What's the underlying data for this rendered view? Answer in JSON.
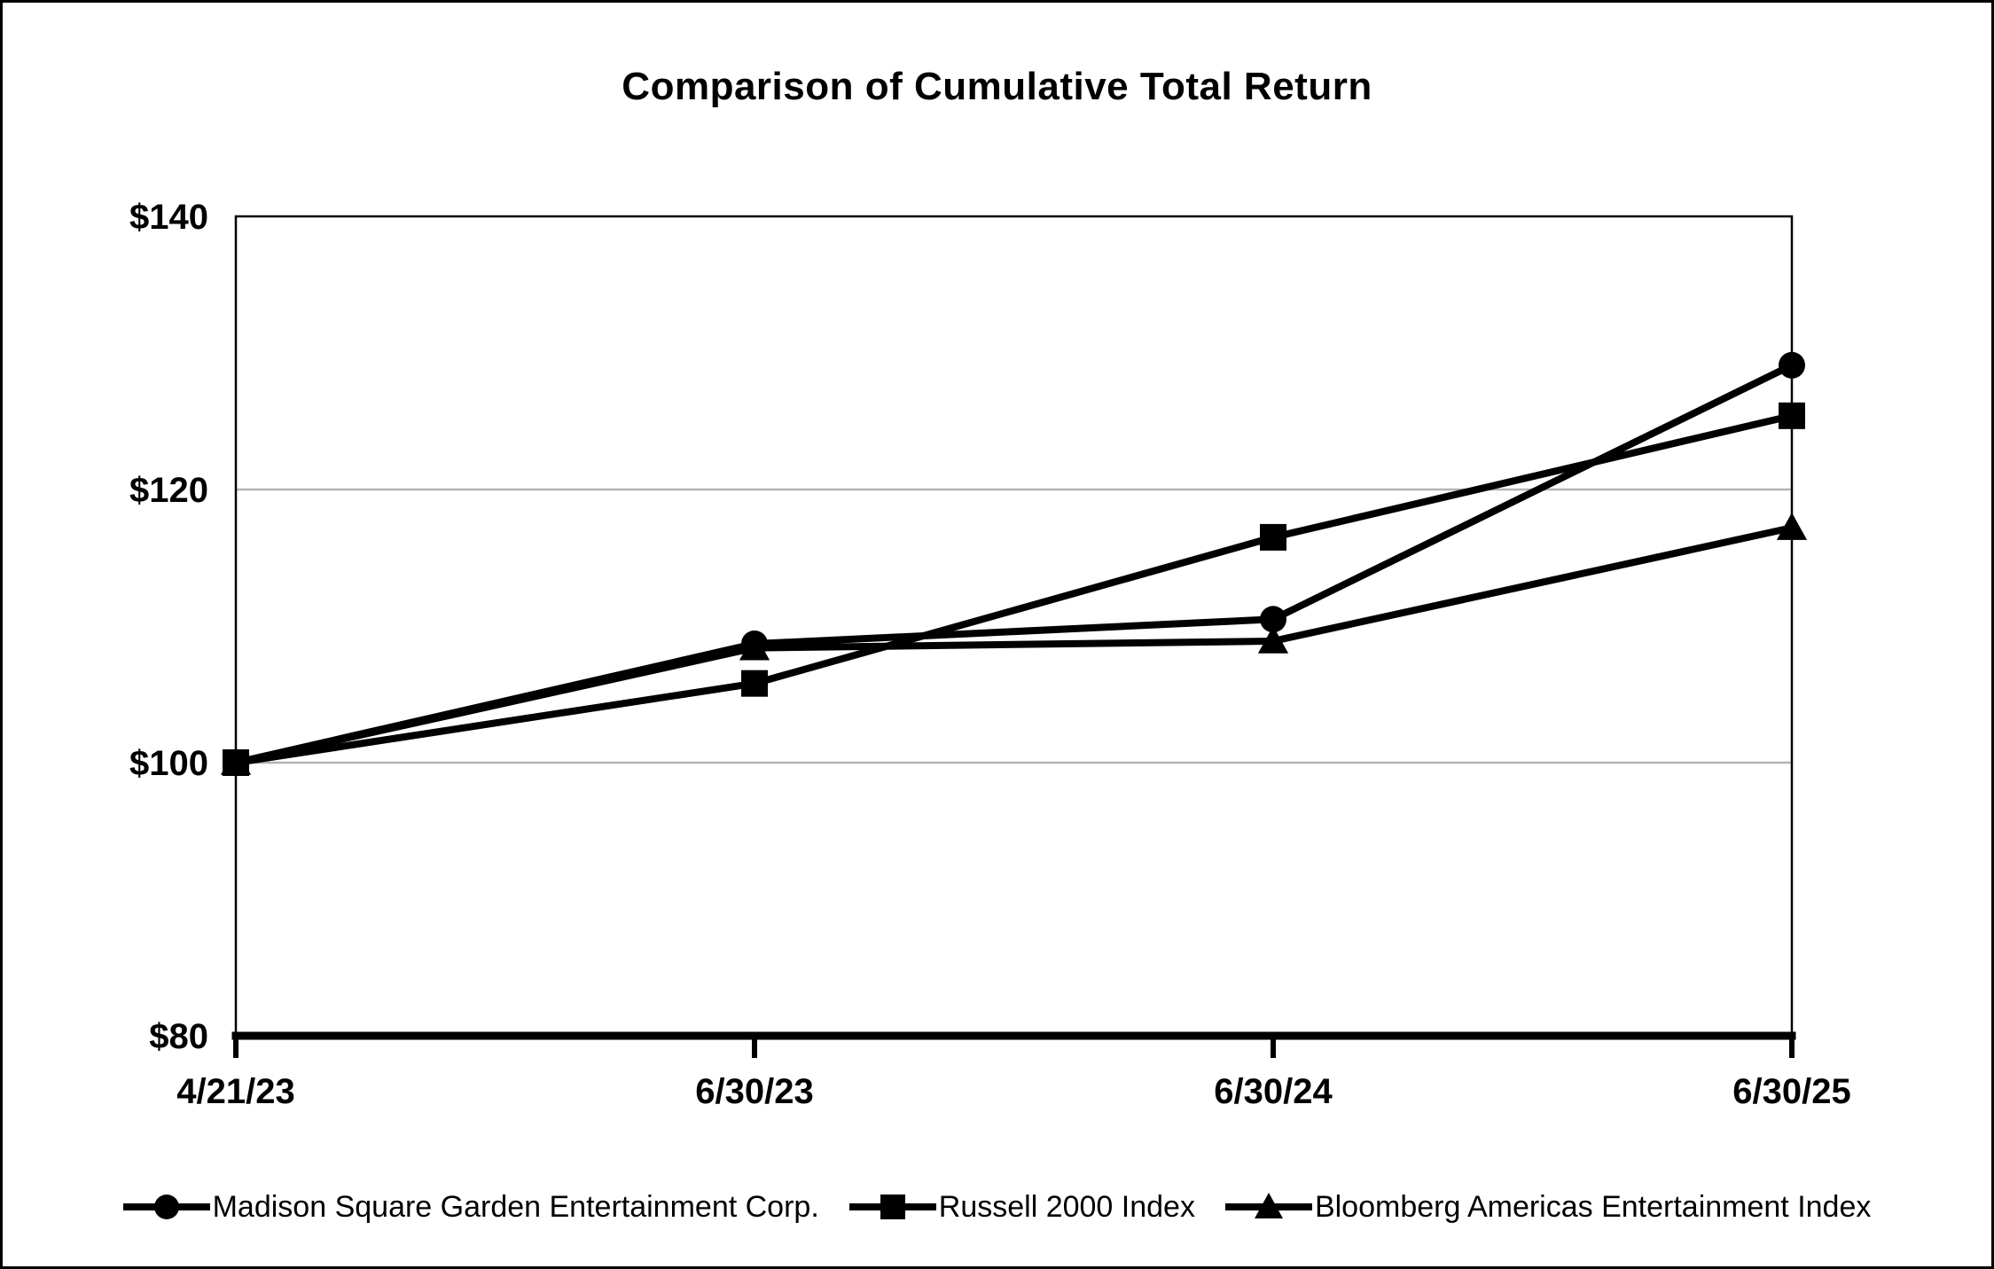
{
  "page": {
    "title": "Comparison of Cumulative Total Return"
  },
  "chart_data": {
    "type": "line",
    "title": "Comparison of Cumulative Total Return",
    "xlabel": "",
    "ylabel": "",
    "x_labels": [
      "4/21/23",
      "6/30/23",
      "6/30/24",
      "6/30/25"
    ],
    "y_ticks": [
      80,
      100,
      120,
      140
    ],
    "y_tick_labels": [
      "$80",
      "$100",
      "$120",
      "$140"
    ],
    "ylim": [
      80,
      140
    ],
    "gridline_values": [
      100,
      120
    ],
    "grid_on": true,
    "legend_position": "bottom",
    "series": [
      {
        "name": "Madison Square Garden Entertainment Corp.",
        "marker": "circle",
        "values": [
          100,
          108.7,
          110.5,
          129.1
        ]
      },
      {
        "name": "Russell 2000 Index",
        "marker": "square",
        "values": [
          100,
          105.8,
          116.5,
          125.4
        ]
      },
      {
        "name": "Bloomberg Americas Entertainment Index",
        "marker": "triangle",
        "values": [
          100,
          108.4,
          108.9,
          117.2
        ]
      }
    ],
    "colors": {
      "line": "#000000",
      "marker": "#000000",
      "grid": "#b3b3b3",
      "axis": "#000000",
      "background": "#ffffff"
    }
  }
}
